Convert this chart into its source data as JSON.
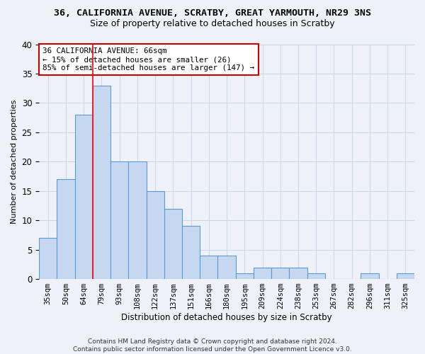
{
  "title": "36, CALIFORNIA AVENUE, SCRATBY, GREAT YARMOUTH, NR29 3NS",
  "subtitle": "Size of property relative to detached houses in Scratby",
  "xlabel": "Distribution of detached houses by size in Scratby",
  "ylabel": "Number of detached properties",
  "categories": [
    "35sqm",
    "50sqm",
    "64sqm",
    "79sqm",
    "93sqm",
    "108sqm",
    "122sqm",
    "137sqm",
    "151sqm",
    "166sqm",
    "180sqm",
    "195sqm",
    "209sqm",
    "224sqm",
    "238sqm",
    "253sqm",
    "267sqm",
    "282sqm",
    "296sqm",
    "311sqm",
    "325sqm"
  ],
  "values": [
    7,
    17,
    28,
    33,
    20,
    20,
    15,
    12,
    9,
    4,
    4,
    1,
    2,
    2,
    2,
    1,
    0,
    0,
    1,
    0,
    1
  ],
  "bar_color": "#c5d8f0",
  "bar_edge_color": "#5b9bd5",
  "grid_color": "#c8d8e8",
  "red_line_index": 2,
  "annotation_title": "36 CALIFORNIA AVENUE: 66sqm",
  "annotation_line1": "← 15% of detached houses are smaller (26)",
  "annotation_line2": "85% of semi-detached houses are larger (147) →",
  "annotation_box_facecolor": "#ffffff",
  "annotation_box_edgecolor": "#cc0000",
  "footer_line1": "Contains HM Land Registry data © Crown copyright and database right 2024.",
  "footer_line2": "Contains public sector information licensed under the Open Government Licence v3.0.",
  "ylim": [
    0,
    40
  ],
  "yticks": [
    0,
    5,
    10,
    15,
    20,
    25,
    30,
    35,
    40
  ],
  "background_color": "#eef2f8"
}
